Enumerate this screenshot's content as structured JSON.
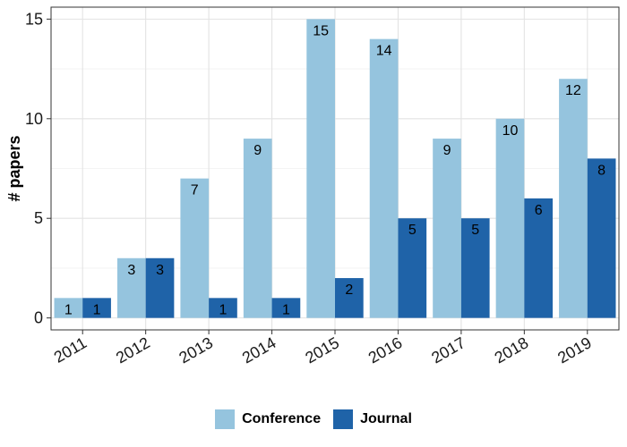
{
  "chart_data": {
    "type": "bar",
    "title": "",
    "xlabel": "",
    "ylabel": "# papers",
    "ylim": [
      -0.6,
      15.6
    ],
    "yticks": [
      0,
      5,
      10,
      15
    ],
    "grid": true,
    "legend_position": "bottom",
    "categories": [
      "2011",
      "2012",
      "2013",
      "2014",
      "2015",
      "2016",
      "2017",
      "2018",
      "2019"
    ],
    "series": [
      {
        "name": "Conference",
        "color": "#95c4de",
        "values": [
          1,
          3,
          7,
          9,
          15,
          14,
          9,
          10,
          12
        ]
      },
      {
        "name": "Journal",
        "color": "#1f63a8",
        "values": [
          1,
          3,
          1,
          1,
          2,
          5,
          5,
          6,
          8
        ]
      }
    ]
  }
}
